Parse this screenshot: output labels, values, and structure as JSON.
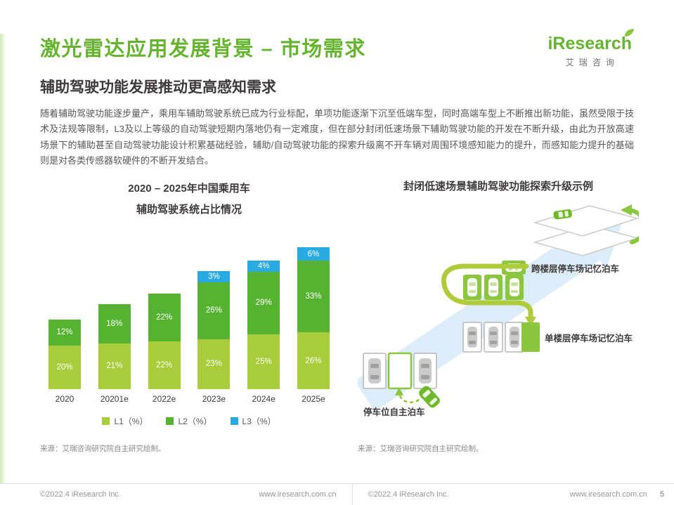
{
  "colors": {
    "accent_green": "#65B32E",
    "body_gray": "#595757"
  },
  "header": {
    "title": "激光雷达应用发展背景 – 市场需求",
    "logo_brand": "iResearch",
    "logo_sub": "艾瑞咨询"
  },
  "section": {
    "subtitle": "辅助驾驶功能发展推动更高感知需求",
    "body": "随着辅助驾驶功能逐步量产，乘用车辅助驾驶系统已成为行业标配，单项功能逐渐下沉至低端车型，同时高端车型上不断推出新功能，虽然受限于技术及法规等限制，L3及以上等级的自动驾驶短期内落地仍有一定难度，但在部分封闭低速场景下辅助驾驶功能的开发在不断升级，由此为开放高速场景下的辅助甚至自动驾驶功能设计积累基础经验，辅助/自动驾驶功能的探索升级离不开车辆对周围环境感知能力的提升，而感知能力提升的基础则是对各类传感器软硬件的不断开发结合。"
  },
  "chart_data": {
    "type": "bar",
    "stacked": true,
    "title_line1": "2020 – 2025年中国乘用车",
    "title_line2": "辅助驾驶系统占比情况",
    "categories": [
      "2020",
      "20201e",
      "2022e",
      "2023e",
      "2024e",
      "2025e"
    ],
    "series": [
      {
        "name": "L1（%）",
        "color": "#A8CC3A",
        "values": [
          20,
          21,
          22,
          23,
          25,
          26
        ]
      },
      {
        "name": "L2（%）",
        "color": "#56B231",
        "values": [
          12,
          18,
          22,
          26,
          29,
          33
        ]
      },
      {
        "name": "L3（%）",
        "color": "#29ABE2",
        "values": [
          0,
          0,
          0,
          3,
          4,
          6
        ]
      }
    ],
    "value_suffix": "%",
    "ylim": [
      0,
      70
    ],
    "grid": false,
    "legend_position": "bottom",
    "source": "来源：艾瑞咨询研究院自主研究绘制。"
  },
  "diagram": {
    "title": "封闭低速场景辅助驾驶功能探索升级示例",
    "labels": {
      "cross_floor": "跨楼层停车场记忆泊车",
      "single_floor": "单楼层停车场记忆泊车",
      "self_parking": "停车位自主泊车"
    },
    "source": "来源：艾瑞咨询研究院自主研究绘制。"
  },
  "footer": {
    "left_copyright": "©2022.4 iResearch Inc.",
    "left_site": "www.iresearch.com.cn",
    "right_copyright": "©2022.4 iResearch Inc.",
    "right_site": "www.iresearch.com.cn",
    "page_number": "5"
  }
}
